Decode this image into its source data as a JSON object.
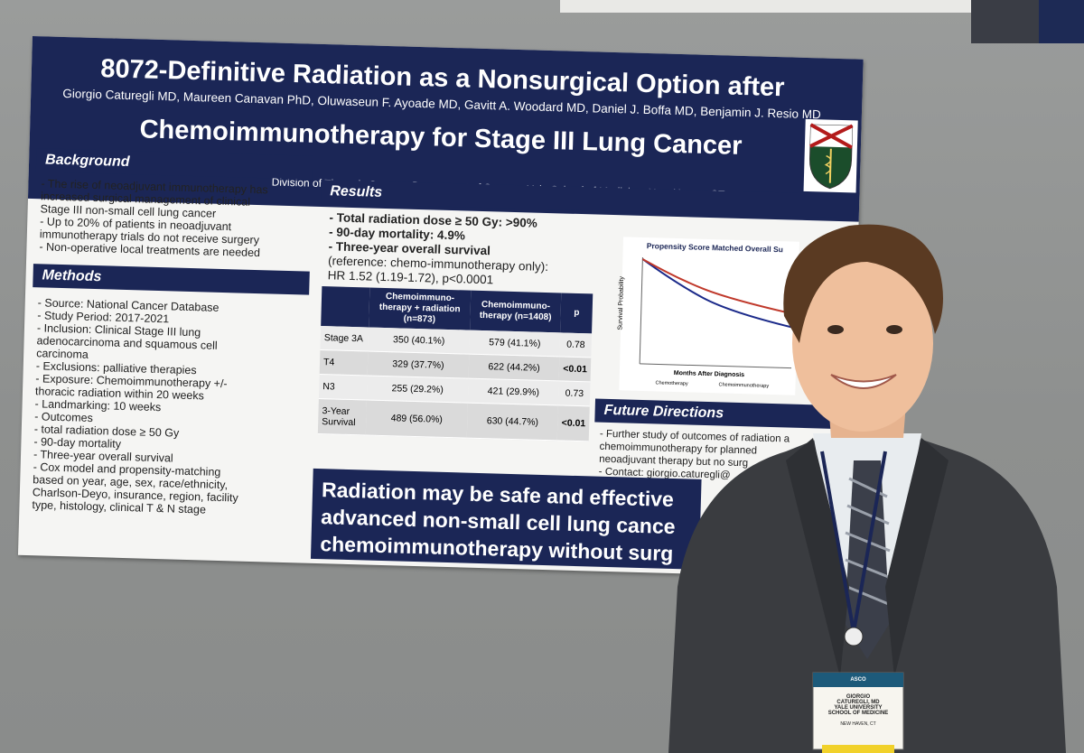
{
  "poster": {
    "title_line1": "8072-Definitive Radiation as a Nonsurgical Option after",
    "title_line2": "Chemoimmunotherapy for Stage III Lung Cancer",
    "authors": "Giorgio Caturegli MD, Maureen Canavan PhD, Oluwaseun F. Ayoade MD, Gavitt A. Woodard MD, Daniel J. Boffa MD, Benjamin J. Resio MD",
    "affiliation": "Division of Thoracic Surgery, Department of Surgery, Yale School of Medicine, New Haven, CT",
    "background": {
      "heading": "Background",
      "lines": [
        "- The rise of neoadjuvant immunotherapy has",
        "  increased surgical management of clinical",
        "  Stage III non-small cell lung cancer",
        "- Up to 20% of patients in neoadjuvant",
        "  immunotherapy trials do not receive surgery",
        "- Non-operative local treatments are needed"
      ]
    },
    "methods": {
      "heading": "Methods",
      "lines": [
        "- Source: National Cancer Database",
        "- Study Period: 2017-2021",
        "- Inclusion: Clinical Stage III lung",
        "  adenocarcinoma and squamous cell",
        "  carcinoma",
        "- Exclusions: palliative therapies",
        "- Exposure: Chemoimmunotherapy +/-",
        "  thoracic radiation within 20 weeks",
        "- Landmarking: 10 weeks",
        "- Outcomes",
        "    - total radiation dose ≥ 50 Gy",
        "    - 90-day mortality",
        "    - Three-year overall survival",
        "       - Cox model and propensity-matching",
        "         based on year, age, sex, race/ethnicity,",
        "         Charlson-Deyo, insurance, region, facility",
        "         type, histology, clinical T & N stage"
      ]
    },
    "results": {
      "heading": "Results",
      "lines": [
        "- Total radiation dose ≥ 50 Gy: >90%",
        "- 90-day mortality: 4.9%",
        "- Three-year overall survival",
        "  (reference: chemo-immunotherapy only):",
        "  HR 1.52 (1.19-1.72), p<0.0001"
      ],
      "table": {
        "headers": [
          "",
          "Chemoimmuno-therapy + radiation (n=873)",
          "Chemoimmuno-therapy (n=1408)",
          "p"
        ],
        "rows": [
          [
            "Stage 3A",
            "350 (40.1%)",
            "579 (41.1%)",
            "0.78"
          ],
          [
            "T4",
            "329 (37.7%)",
            "622 (44.2%)",
            "<0.01"
          ],
          [
            "N3",
            "255 (29.2%)",
            "421 (29.9%)",
            "0.73"
          ],
          [
            "3-Year Survival",
            "489 (56.0%)",
            "630 (44.7%)",
            "<0.01"
          ]
        ]
      }
    },
    "chart": {
      "title": "Propensity Score Matched Overall Su",
      "ylabel": "Survival Probability",
      "xlabel": "Months After Diagnosis",
      "legend": [
        "Chemotherapy",
        "Chemoimmunotherapy"
      ]
    },
    "future": {
      "heading": "Future Directions",
      "lines": [
        "- Further study of outcomes of radiation a",
        "  chemoimmunotherapy for planned",
        "  neoadjuvant therapy but no surg",
        "- Contact: giorgio.caturegli@"
      ]
    },
    "banner_lines": [
      "Radiation may be safe and effective",
      "advanced non-small cell lung cance",
      "chemoimmunotherapy without surg"
    ]
  },
  "badge": {
    "name_first": "GIORGIO",
    "name_last": "CATUREGLI, MD",
    "org_line1": "YALE UNIVERSITY",
    "org_line2": "SCHOOL OF MEDICINE",
    "city": "NEW HAVEN, CT",
    "brand": "ASCO"
  }
}
